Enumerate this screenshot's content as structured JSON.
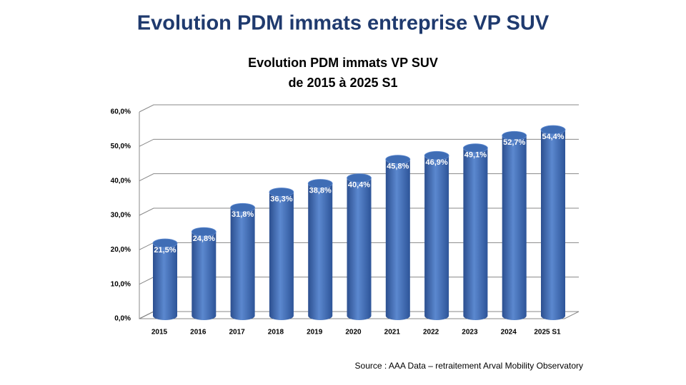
{
  "header": {
    "title": "Evolution PDM immats entreprise VP SUV"
  },
  "chart_data": {
    "type": "bar",
    "title": "Evolution PDM immats VP SUV",
    "subtitle": "de 2015 à 2025 S1",
    "categories": [
      "2015",
      "2016",
      "2017",
      "2018",
      "2019",
      "2020",
      "2021",
      "2022",
      "2023",
      "2024",
      "2025 S1"
    ],
    "values": [
      21.5,
      24.8,
      31.8,
      36.3,
      38.8,
      40.4,
      45.8,
      46.9,
      49.1,
      52.7,
      54.4
    ],
    "value_labels": [
      "21,5%",
      "24,8%",
      "31,8%",
      "36,3%",
      "38,8%",
      "40,4%",
      "45,8%",
      "46,9%",
      "49,1%",
      "52,7%",
      "54,4%"
    ],
    "color": "#3f6db5",
    "ylim": [
      0,
      60
    ],
    "yticks": [
      {
        "value": 0,
        "label": "0,0%"
      },
      {
        "value": 10,
        "label": "10,0%"
      },
      {
        "value": 20,
        "label": "20,0%"
      },
      {
        "value": 30,
        "label": "30,0%"
      },
      {
        "value": 40,
        "label": "40,0%"
      },
      {
        "value": 50,
        "label": "50,0%"
      },
      {
        "value": 60,
        "label": "60,0%"
      }
    ],
    "grid": true
  },
  "source": "Source : AAA Data – retraitement Arval Mobility Observatory"
}
